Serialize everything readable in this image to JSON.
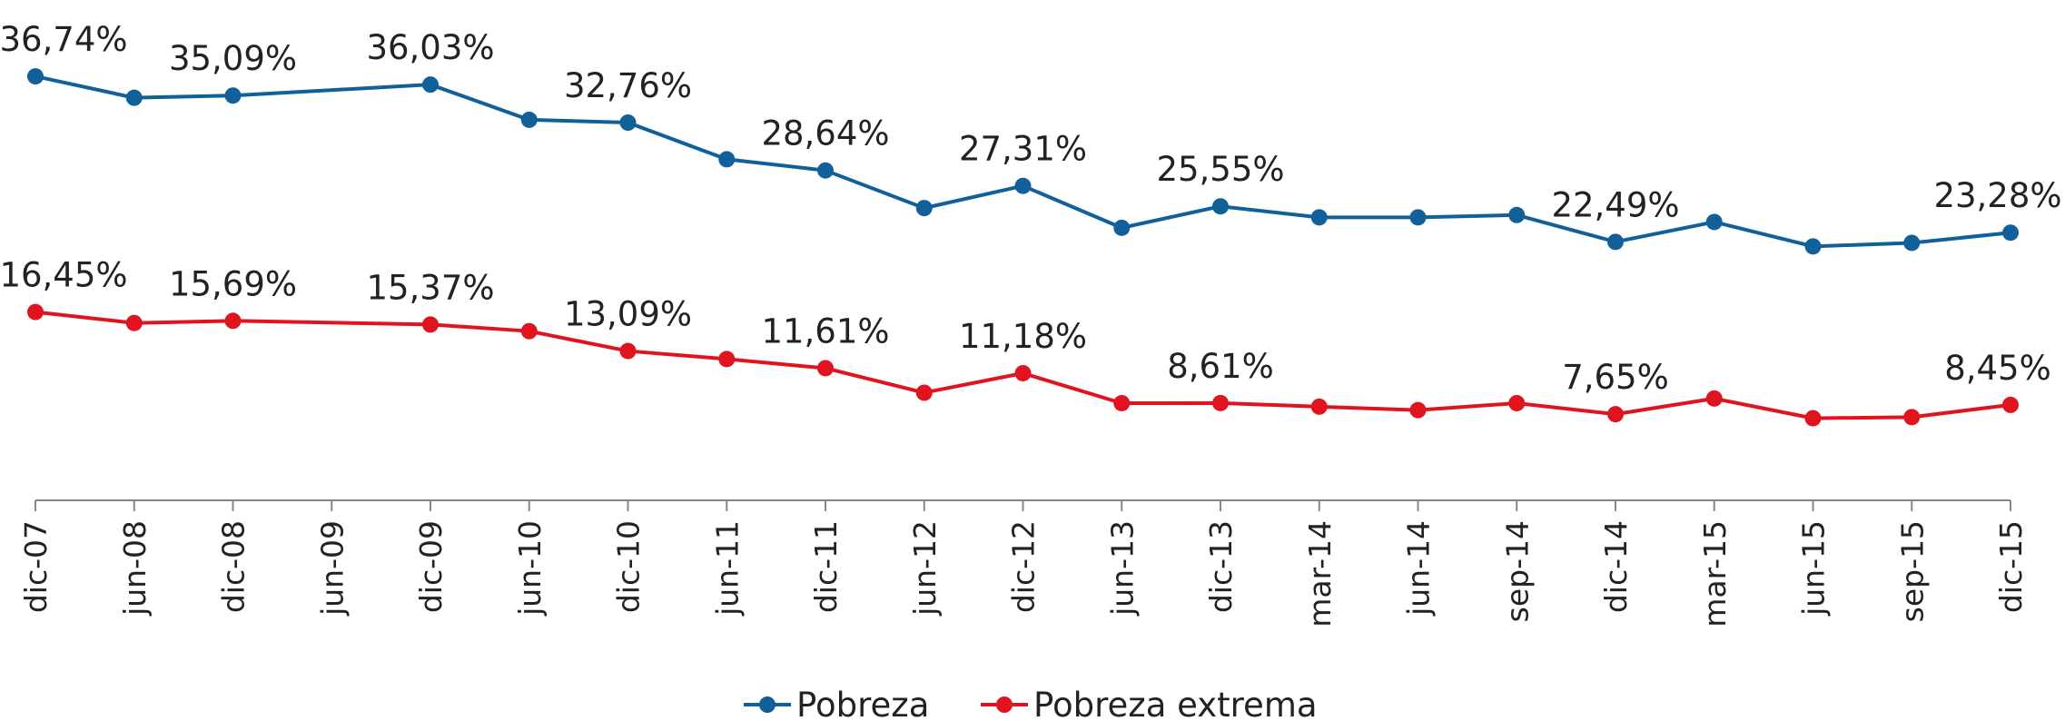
{
  "chart_data": {
    "type": "line",
    "categories": [
      "dic-07",
      "jun-08",
      "dic-08",
      "jun-09",
      "dic-09",
      "jun-10",
      "dic-10",
      "jun-11",
      "dic-11",
      "jun-12",
      "dic-12",
      "jun-13",
      "dic-13",
      "mar-14",
      "jun-14",
      "sep-14",
      "dic-14",
      "mar-15",
      "jun-15",
      "sep-15",
      "dic-15"
    ],
    "series": [
      {
        "name": "Pobreza",
        "color": "#11609a",
        "values": [
          36.74,
          34.9,
          35.09,
          null,
          36.03,
          33.0,
          32.76,
          29.6,
          28.64,
          25.4,
          27.31,
          23.7,
          25.55,
          24.6,
          24.6,
          24.8,
          22.49,
          24.2,
          22.1,
          22.4,
          23.28
        ],
        "value_labels": [
          "36,74%",
          null,
          "35,09%",
          null,
          "36,03%",
          null,
          "32,76%",
          null,
          "28,64%",
          null,
          "27,31%",
          null,
          "25,55%",
          null,
          null,
          null,
          "22,49%",
          null,
          null,
          null,
          "23,28%"
        ]
      },
      {
        "name": "Pobreza extrema",
        "color": "#e0141e",
        "values": [
          16.45,
          15.5,
          15.69,
          null,
          15.37,
          14.8,
          13.09,
          12.4,
          11.61,
          9.5,
          11.18,
          8.6,
          8.61,
          8.3,
          8.0,
          8.6,
          7.65,
          9.0,
          7.3,
          7.4,
          8.45
        ],
        "value_labels": [
          "16,45%",
          null,
          "15,69%",
          null,
          "15,37%",
          null,
          "13,09%",
          null,
          "11,61%",
          null,
          "11,18%",
          null,
          "8,61%",
          null,
          null,
          null,
          "7,65%",
          null,
          null,
          null,
          "8,45%"
        ]
      }
    ],
    "legend": "bottom"
  }
}
